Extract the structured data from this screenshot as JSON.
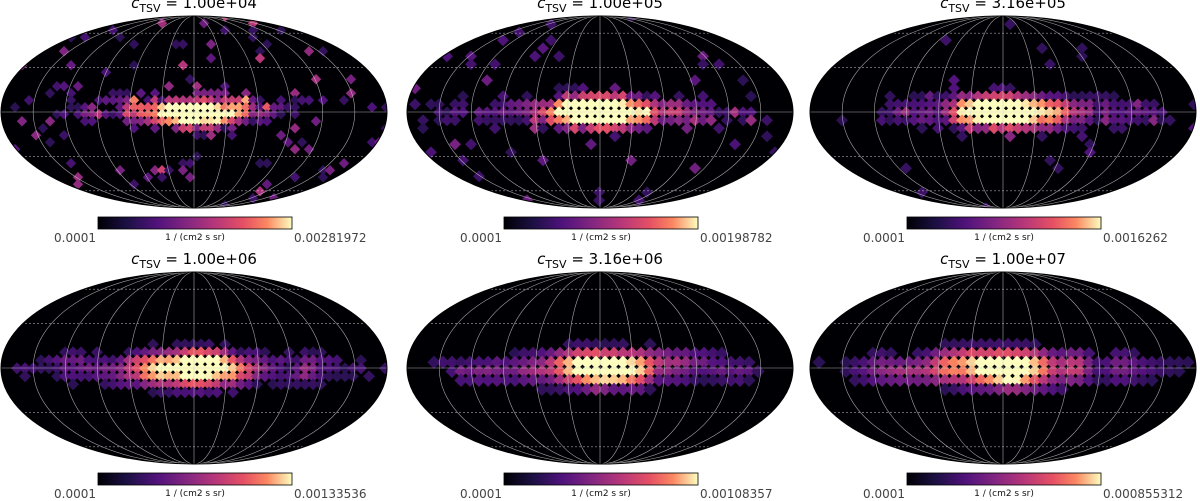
{
  "figure": {
    "colormap": "magma",
    "background": "#ffffff",
    "graticule_color": "#dddddd"
  },
  "chart_data": [
    {
      "type": "heatmap",
      "projection": "mollweide",
      "title_var": "c",
      "title_sub": "TSV",
      "title_value": "1.00e+04",
      "unit_label": "1 / (cm2 s sr)",
      "vmin_label": "0.0001",
      "vmax_label": "0.00281972",
      "vmin": 0.0001,
      "vmax": 0.00281972,
      "grid": true
    },
    {
      "type": "heatmap",
      "projection": "mollweide",
      "title_var": "c",
      "title_sub": "TSV",
      "title_value": "1.00e+05",
      "unit_label": "1 / (cm2 s sr)",
      "vmin_label": "0.0001",
      "vmax_label": "0.00198782",
      "vmin": 0.0001,
      "vmax": 0.00198782,
      "grid": true
    },
    {
      "type": "heatmap",
      "projection": "mollweide",
      "title_var": "c",
      "title_sub": "TSV",
      "title_value": "3.16e+05",
      "unit_label": "1 / (cm2 s sr)",
      "vmin_label": "0.0001",
      "vmax_label": "0.0016262",
      "vmin": 0.0001,
      "vmax": 0.0016262,
      "grid": true
    },
    {
      "type": "heatmap",
      "projection": "mollweide",
      "title_var": "c",
      "title_sub": "TSV",
      "title_value": "1.00e+06",
      "unit_label": "1 / (cm2 s sr)",
      "vmin_label": "0.0001",
      "vmax_label": "0.00133536",
      "vmin": 0.0001,
      "vmax": 0.00133536,
      "grid": true
    },
    {
      "type": "heatmap",
      "projection": "mollweide",
      "title_var": "c",
      "title_sub": "TSV",
      "title_value": "3.16e+06",
      "unit_label": "1 / (cm2 s sr)",
      "vmin_label": "0.0001",
      "vmax_label": "0.00108357",
      "vmin": 0.0001,
      "vmax": 0.00108357,
      "grid": true
    },
    {
      "type": "heatmap",
      "projection": "mollweide",
      "title_var": "c",
      "title_sub": "TSV",
      "title_value": "1.00e+07",
      "unit_label": "1 / (cm2 s sr)",
      "vmin_label": "0.0001",
      "vmax_label": "0.000855312",
      "vmin": 0.0001,
      "vmax": 0.000855312,
      "grid": true
    }
  ]
}
